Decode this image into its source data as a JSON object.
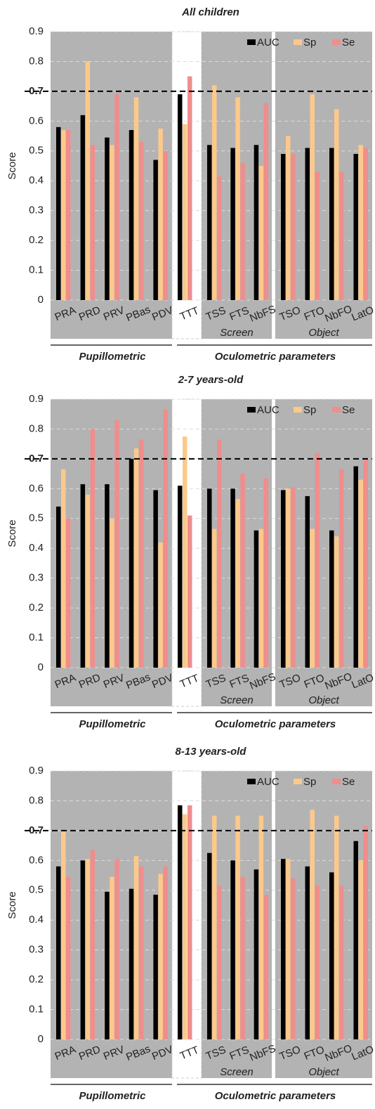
{
  "chart_data": [
    {
      "type": "bar",
      "title": "All children",
      "y_label": "Score",
      "categories": [
        "PRA",
        "PRD",
        "PRV",
        "PBas",
        "PDV",
        "TTT",
        "TSS",
        "FTS",
        "NbFS",
        "TSO",
        "FTO",
        "NbFO",
        "LatO"
      ],
      "series": [
        {
          "name": "AUC",
          "color": "#000000",
          "values": [
            0.58,
            0.62,
            0.545,
            0.57,
            0.47,
            0.69,
            0.52,
            0.51,
            0.52,
            0.49,
            0.51,
            0.51,
            0.49
          ]
        },
        {
          "name": "Sp",
          "color": "#fcc98a",
          "values": [
            0.57,
            0.8,
            0.52,
            0.68,
            0.575,
            0.59,
            0.72,
            0.68,
            0.45,
            0.55,
            0.69,
            0.64,
            0.52
          ]
        },
        {
          "name": "Se",
          "color": "#f08d8d",
          "values": [
            0.57,
            0.52,
            0.69,
            0.53,
            0.5,
            0.75,
            0.415,
            0.46,
            0.66,
            0.49,
            0.43,
            0.43,
            0.51
          ]
        }
      ],
      "ylim": [
        0,
        0.9
      ],
      "yticks": [
        0,
        0.1,
        0.2,
        0.3,
        0.4,
        0.5,
        0.6,
        0.7,
        0.8,
        0.9
      ],
      "grid": true,
      "reference_line": 0.7,
      "legend": "top-right",
      "subgroups": [
        "Screen",
        "Object"
      ],
      "groups": [
        "Pupillometric",
        "Oculometric parameters"
      ]
    },
    {
      "type": "bar",
      "title": "2-7 years-old",
      "y_label": "Score",
      "categories": [
        "PRA",
        "PRD",
        "PRV",
        "PBas",
        "PDV",
        "TTT",
        "TSS",
        "FTS",
        "NbFS",
        "TSO",
        "FTO",
        "NbFO",
        "LatO"
      ],
      "series": [
        {
          "name": "AUC",
          "color": "#000000",
          "values": [
            0.54,
            0.615,
            0.615,
            0.7,
            0.595,
            0.61,
            0.6,
            0.6,
            0.46,
            0.595,
            0.575,
            0.46,
            0.675
          ]
        },
        {
          "name": "Sp",
          "color": "#fcc98a",
          "values": [
            0.665,
            0.58,
            0.5,
            0.735,
            0.42,
            0.775,
            0.465,
            0.565,
            0.465,
            0.6,
            0.465,
            0.44,
            0.63
          ]
        },
        {
          "name": "Se",
          "color": "#f08d8d",
          "values": [
            0.5,
            0.8,
            0.83,
            0.765,
            0.865,
            0.51,
            0.765,
            0.65,
            0.635,
            0.605,
            0.72,
            0.665,
            0.7
          ]
        }
      ],
      "ylim": [
        0,
        0.9
      ],
      "yticks": [
        0,
        0.1,
        0.2,
        0.3,
        0.4,
        0.5,
        0.6,
        0.7,
        0.8,
        0.9
      ],
      "grid": true,
      "reference_line": 0.7,
      "legend": "top-right",
      "subgroups": [
        "Screen",
        "Object"
      ],
      "groups": [
        "Pupillometric",
        "Oculometric parameters"
      ]
    },
    {
      "type": "bar",
      "title": "8-13 years-old",
      "y_label": "Score",
      "categories": [
        "PRA",
        "PRD",
        "PRV",
        "PBas",
        "PDV",
        "TTT",
        "TSS",
        "FTS",
        "NbFS",
        "TSO",
        "FTO",
        "NbFO",
        "LatO"
      ],
      "series": [
        {
          "name": "AUC",
          "color": "#000000",
          "values": [
            0.58,
            0.6,
            0.495,
            0.505,
            0.485,
            0.785,
            0.625,
            0.6,
            0.57,
            0.605,
            0.58,
            0.56,
            0.665
          ]
        },
        {
          "name": "Sp",
          "color": "#fcc98a",
          "values": [
            0.7,
            0.605,
            0.545,
            0.615,
            0.555,
            0.755,
            0.75,
            0.75,
            0.75,
            0.605,
            0.77,
            0.75,
            0.6
          ]
        },
        {
          "name": "Se",
          "color": "#f08d8d",
          "values": [
            0.545,
            0.635,
            0.605,
            0.58,
            0.58,
            0.785,
            0.515,
            0.545,
            0.485,
            0.54,
            0.515,
            0.515,
            0.715
          ]
        }
      ],
      "ylim": [
        0,
        0.9
      ],
      "yticks": [
        0,
        0.1,
        0.2,
        0.3,
        0.4,
        0.5,
        0.6,
        0.7,
        0.8,
        0.9
      ],
      "grid": true,
      "reference_line": 0.7,
      "legend": "top-right",
      "subgroups": [
        "Screen",
        "Object"
      ],
      "groups": [
        "Pupillometric",
        "Oculometric parameters"
      ]
    }
  ]
}
